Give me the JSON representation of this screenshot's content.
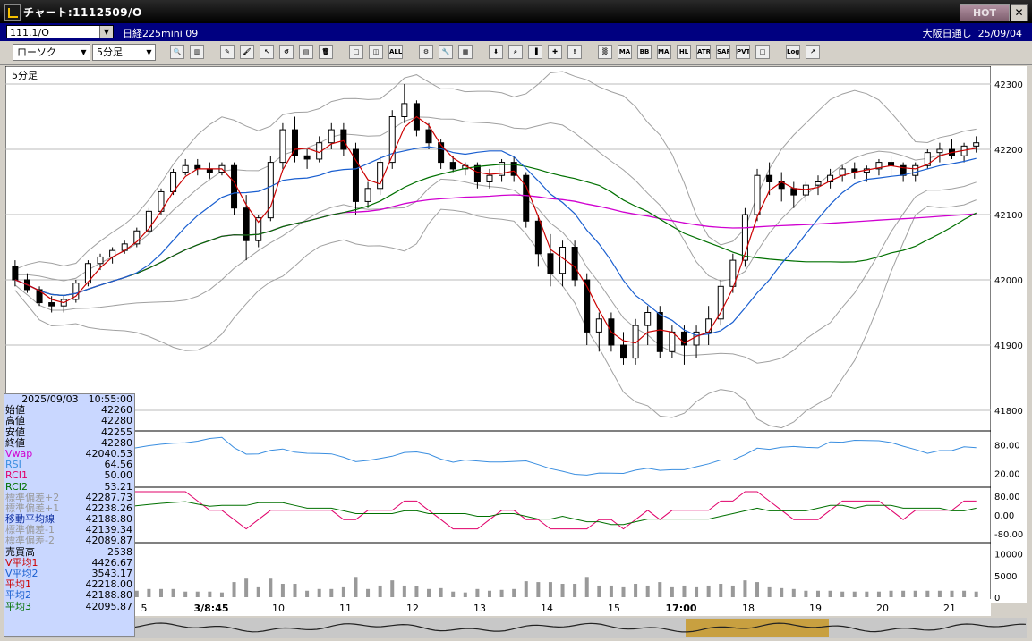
{
  "window": {
    "title": "チャート:1112509/O",
    "hot_label": "HOT",
    "close_label": "✕"
  },
  "infobar": {
    "symbol": "111.1/O",
    "instrument": "日経225mini 09",
    "session": "大阪日通し",
    "date": "25/09/04"
  },
  "toolbar": {
    "chart_type": "ローソク",
    "timeframe": "5分足",
    "buttons": [
      {
        "name": "zoom-icon",
        "glyph": "🔍"
      },
      {
        "name": "columns-icon",
        "glyph": "▥"
      },
      {
        "name": "pen-icon",
        "glyph": "✎"
      },
      {
        "name": "brush-icon",
        "glyph": "🖌"
      },
      {
        "name": "pointer-icon",
        "glyph": "↖"
      },
      {
        "name": "rotate-icon",
        "glyph": "↺"
      },
      {
        "name": "notes-icon",
        "glyph": "▤"
      },
      {
        "name": "trash-icon",
        "glyph": "🗑"
      },
      {
        "name": "candle-a-icon",
        "glyph": "□"
      },
      {
        "name": "candle-b-icon",
        "glyph": "◫"
      },
      {
        "name": "all-icon",
        "glyph": "ALL"
      },
      {
        "name": "settings-icon",
        "glyph": "⚙"
      },
      {
        "name": "wrench-icon",
        "glyph": "🔧"
      },
      {
        "name": "palette-icon",
        "glyph": "▦"
      },
      {
        "name": "bookmark-icon",
        "glyph": "⬇"
      },
      {
        "name": "search-chart-icon",
        "glyph": "⌕"
      },
      {
        "name": "bars-icon",
        "glyph": "▐"
      },
      {
        "name": "cross-icon",
        "glyph": "✚"
      },
      {
        "name": "disabled-icon",
        "glyph": "!"
      },
      {
        "name": "grid-icon",
        "glyph": "▒"
      },
      {
        "name": "ma-icon",
        "glyph": "MA"
      },
      {
        "name": "bb-icon",
        "glyph": "BB"
      },
      {
        "name": "mae-icon",
        "glyph": "MAE"
      },
      {
        "name": "hl-icon",
        "glyph": "HL"
      },
      {
        "name": "atr-icon",
        "glyph": "ATR"
      },
      {
        "name": "sar-icon",
        "glyph": "SAR"
      },
      {
        "name": "pvt-icon",
        "glyph": "PVT"
      },
      {
        "name": "box-icon",
        "glyph": "□"
      },
      {
        "name": "log-icon",
        "glyph": "Log"
      },
      {
        "name": "export-icon",
        "glyph": "↗"
      }
    ]
  },
  "chart": {
    "timeframe_label": "5分足",
    "price_ticks": [
      "42300",
      "42200",
      "42100",
      "42000",
      "41900",
      "41800"
    ],
    "rsi_ticks": [
      "80.00",
      "20.00"
    ],
    "rci_ticks": [
      "80.00",
      "0.00",
      "-80.00"
    ],
    "vol_ticks": [
      "10000",
      "5000",
      "0"
    ],
    "time_labels": [
      "5",
      "3/8:45",
      "10",
      "11",
      "12",
      "13",
      "14",
      "15",
      "17:00",
      "18",
      "19",
      "20",
      "21"
    ],
    "colors": {
      "up": "#ffffff",
      "down": "#000000",
      "ma_short": "#cc0000",
      "ma_mid": "#1a5fd0",
      "ma_long": "#007000",
      "vwap": "#d000d0",
      "bands": "#a0a0a0",
      "rsi": "#3a8ee0",
      "rci1": "#e0006a",
      "rci2": "#007000",
      "vol": "#999999"
    }
  },
  "chart_data": {
    "type": "candlestick",
    "timeframe": "5分足",
    "ylim": [
      41800,
      42300
    ],
    "x_labels": [
      "5",
      "3/8:45",
      "10",
      "11",
      "12",
      "13",
      "14",
      "15",
      "17:00",
      "18",
      "19",
      "20",
      "21"
    ],
    "ohlc": [
      [
        42020,
        42030,
        41990,
        42000
      ],
      [
        42000,
        42010,
        41980,
        41985
      ],
      [
        41985,
        41990,
        41960,
        41965
      ],
      [
        41965,
        41975,
        41950,
        41960
      ],
      [
        41960,
        41975,
        41950,
        41970
      ],
      [
        41970,
        42000,
        41965,
        41995
      ],
      [
        41995,
        42030,
        41990,
        42025
      ],
      [
        42025,
        42040,
        42015,
        42035
      ],
      [
        42035,
        42050,
        42025,
        42045
      ],
      [
        42045,
        42060,
        42040,
        42055
      ],
      [
        42055,
        42080,
        42050,
        42075
      ],
      [
        42075,
        42110,
        42070,
        42105
      ],
      [
        42105,
        42140,
        42100,
        42135
      ],
      [
        42135,
        42170,
        42130,
        42165
      ],
      [
        42165,
        42185,
        42160,
        42175
      ],
      [
        42175,
        42185,
        42160,
        42170
      ],
      [
        42170,
        42180,
        42155,
        42165
      ],
      [
        42165,
        42180,
        42160,
        42175
      ],
      [
        42175,
        42180,
        42100,
        42110
      ],
      [
        42110,
        42130,
        42030,
        42060
      ],
      [
        42060,
        42100,
        42050,
        42095
      ],
      [
        42095,
        42190,
        42090,
        42180
      ],
      [
        42180,
        42240,
        42170,
        42230
      ],
      [
        42230,
        42250,
        42180,
        42190
      ],
      [
        42190,
        42200,
        42170,
        42185
      ],
      [
        42185,
        42220,
        42180,
        42210
      ],
      [
        42210,
        42240,
        42200,
        42230
      ],
      [
        42230,
        42240,
        42190,
        42200
      ],
      [
        42200,
        42210,
        42100,
        42120
      ],
      [
        42120,
        42150,
        42110,
        42140
      ],
      [
        42140,
        42190,
        42130,
        42180
      ],
      [
        42180,
        42260,
        42170,
        42250
      ],
      [
        42250,
        42300,
        42240,
        42270
      ],
      [
        42270,
        42275,
        42220,
        42230
      ],
      [
        42230,
        42240,
        42200,
        42210
      ],
      [
        42210,
        42215,
        42170,
        42180
      ],
      [
        42180,
        42190,
        42165,
        42170
      ],
      [
        42170,
        42180,
        42160,
        42175
      ],
      [
        42175,
        42180,
        42140,
        42150
      ],
      [
        42150,
        42170,
        42140,
        42160
      ],
      [
        42160,
        42185,
        42150,
        42180
      ],
      [
        42180,
        42190,
        42150,
        42160
      ],
      [
        42160,
        42165,
        42080,
        42090
      ],
      [
        42090,
        42100,
        42020,
        42040
      ],
      [
        42040,
        42070,
        41990,
        42010
      ],
      [
        42010,
        42060,
        41990,
        42050
      ],
      [
        42050,
        42060,
        41990,
        42000
      ],
      [
        42000,
        42010,
        41900,
        41920
      ],
      [
        41920,
        41950,
        41890,
        41940
      ],
      [
        41940,
        41950,
        41890,
        41900
      ],
      [
        41900,
        41920,
        41870,
        41880
      ],
      [
        41880,
        41940,
        41870,
        41930
      ],
      [
        41930,
        41960,
        41900,
        41950
      ],
      [
        41950,
        41960,
        41880,
        41890
      ],
      [
        41890,
        41930,
        41880,
        41920
      ],
      [
        41920,
        41930,
        41870,
        41900
      ],
      [
        41900,
        41930,
        41880,
        41920
      ],
      [
        41920,
        41960,
        41900,
        41940
      ],
      [
        41940,
        42000,
        41930,
        41990
      ],
      [
        41990,
        42040,
        41980,
        42030
      ],
      [
        42030,
        42110,
        42020,
        42100
      ],
      [
        42100,
        42170,
        42090,
        42160
      ],
      [
        42160,
        42180,
        42130,
        42150
      ],
      [
        42150,
        42165,
        42120,
        42140
      ],
      [
        42140,
        42150,
        42110,
        42130
      ],
      [
        42130,
        42150,
        42120,
        42145
      ],
      [
        42145,
        42160,
        42130,
        42150
      ],
      [
        42150,
        42170,
        42140,
        42160
      ],
      [
        42160,
        42175,
        42150,
        42170
      ],
      [
        42170,
        42180,
        42155,
        42165
      ],
      [
        42165,
        42175,
        42150,
        42170
      ],
      [
        42170,
        42185,
        42160,
        42180
      ],
      [
        42180,
        42190,
        42160,
        42175
      ],
      [
        42175,
        42180,
        42150,
        42160
      ],
      [
        42160,
        42180,
        42150,
        42175
      ],
      [
        42175,
        42200,
        42170,
        42195
      ],
      [
        42195,
        42210,
        42180,
        42200
      ],
      [
        42200,
        42215,
        42185,
        42190
      ],
      [
        42190,
        42210,
        42180,
        42205
      ],
      [
        42205,
        42220,
        42195,
        42210
      ]
    ],
    "readout": {
      "datetime": "2025/09/03　10:55:00",
      "rows": [
        {
          "label": "始値",
          "value": "42260",
          "color": "#000"
        },
        {
          "label": "高値",
          "value": "42280",
          "color": "#000"
        },
        {
          "label": "安値",
          "value": "42255",
          "color": "#000"
        },
        {
          "label": "終値",
          "value": "42280",
          "color": "#000"
        },
        {
          "label": "Vwap",
          "value": "42040.53",
          "color": "#d000d0"
        },
        {
          "label": "RSI",
          "value": "64.56",
          "color": "#3a8ee0"
        },
        {
          "label": "RCI1",
          "value": "50.00",
          "color": "#e0006a"
        },
        {
          "label": "RCI2",
          "value": "53.21",
          "color": "#007000"
        },
        {
          "label": "標準偏差+2",
          "value": "42287.73",
          "color": "#999"
        },
        {
          "label": "標準偏差+1",
          "value": "42238.26",
          "color": "#999"
        },
        {
          "label": "移動平均線",
          "value": "42188.80",
          "color": "#1030a0"
        },
        {
          "label": "標準偏差-1",
          "value": "42139.34",
          "color": "#999"
        },
        {
          "label": "標準偏差-2",
          "value": "42089.87",
          "color": "#999"
        },
        {
          "label": "売買高",
          "value": "2538",
          "color": "#000"
        },
        {
          "label": "V平均1",
          "value": "4426.67",
          "color": "#cc0000"
        },
        {
          "label": "V平均2",
          "value": "3543.17",
          "color": "#1a5fd0"
        },
        {
          "label": "平均1",
          "value": "42218.00",
          "color": "#cc0000"
        },
        {
          "label": "平均2",
          "value": "42188.80",
          "color": "#1a5fd0"
        },
        {
          "label": "平均3",
          "value": "42095.87",
          "color": "#007000"
        }
      ]
    }
  }
}
